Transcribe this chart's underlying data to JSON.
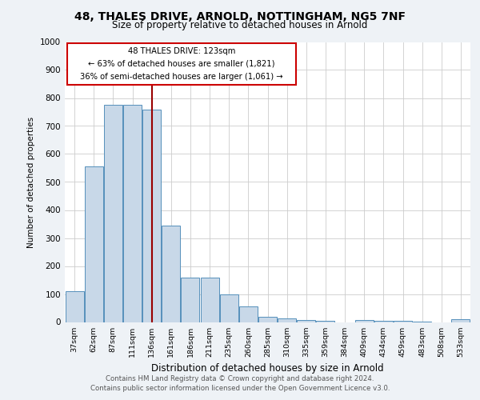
{
  "title1": "48, THALES DRIVE, ARNOLD, NOTTINGHAM, NG5 7NF",
  "title2": "Size of property relative to detached houses in Arnold",
  "xlabel": "Distribution of detached houses by size in Arnold",
  "ylabel": "Number of detached properties",
  "footnote1": "Contains HM Land Registry data © Crown copyright and database right 2024.",
  "footnote2": "Contains public sector information licensed under the Open Government Licence v3.0.",
  "annotation_line1": "48 THALES DRIVE: 123sqm",
  "annotation_line2": "← 63% of detached houses are smaller (1,821)",
  "annotation_line3": "36% of semi-detached houses are larger (1,061) →",
  "bins": [
    "37sqm",
    "62sqm",
    "87sqm",
    "111sqm",
    "136sqm",
    "161sqm",
    "186sqm",
    "211sqm",
    "235sqm",
    "260sqm",
    "285sqm",
    "310sqm",
    "335sqm",
    "359sqm",
    "384sqm",
    "409sqm",
    "434sqm",
    "459sqm",
    "483sqm",
    "508sqm",
    "533sqm"
  ],
  "values": [
    110,
    555,
    775,
    775,
    760,
    345,
    160,
    160,
    98,
    55,
    18,
    12,
    8,
    5,
    0,
    8,
    5,
    4,
    2,
    0,
    10
  ],
  "bar_color": "#c8d8e8",
  "bar_edge_color": "#5590bb",
  "ref_line_x": 4.0,
  "ref_line_color": "#990000",
  "ylim": [
    0,
    1000
  ],
  "yticks": [
    0,
    100,
    200,
    300,
    400,
    500,
    600,
    700,
    800,
    900,
    1000
  ],
  "bg_color": "#eef2f6",
  "plot_bg_color": "#ffffff",
  "annotation_box_color": "#ffffff",
  "annotation_box_edge": "#cc0000",
  "grid_color": "#cccccc"
}
